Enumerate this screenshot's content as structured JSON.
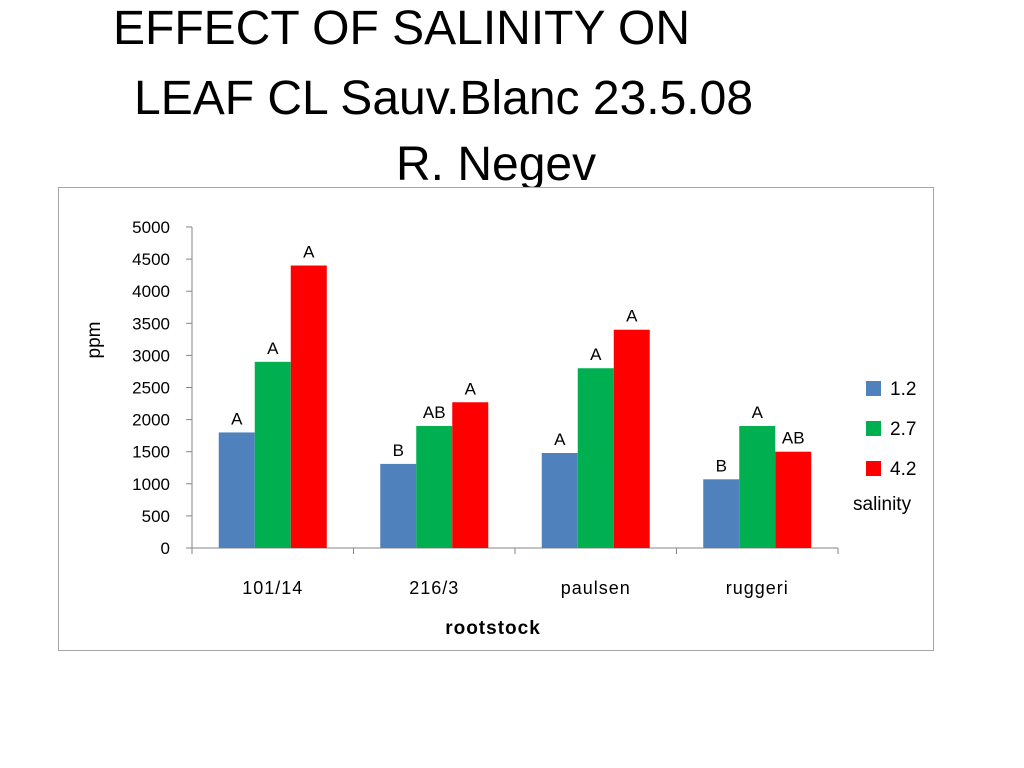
{
  "title": {
    "line1": "EFFECT OF SALINITY ON",
    "line2": "LEAF CL Sauv.Blanc  23.5.08",
    "line3": "R. Negev"
  },
  "chart_data": {
    "type": "bar",
    "categories": [
      "101/14",
      "216/3",
      "paulsen",
      "ruggeri"
    ],
    "series": [
      {
        "name": "1.2",
        "color": "#4f81bd",
        "values": [
          1800,
          1310,
          1480,
          1070
        ],
        "labels": [
          "A",
          "B",
          "A",
          "B"
        ]
      },
      {
        "name": "2.7",
        "color": "#00b050",
        "values": [
          2900,
          1900,
          2800,
          1900
        ],
        "labels": [
          "A",
          "AB",
          "A",
          "A"
        ]
      },
      {
        "name": "4.2",
        "color": "#ff0000",
        "values": [
          4400,
          2270,
          3400,
          1500
        ],
        "labels": [
          "A",
          "A",
          "A",
          "AB"
        ]
      }
    ],
    "ylim": [
      0,
      5000
    ],
    "yticks": [
      "0",
      "500",
      "1000",
      "1500",
      "2000",
      "2500",
      "3000",
      "3500",
      "4000",
      "4500",
      "5000"
    ],
    "ylabel": "ppm",
    "xlabel": "rootstock",
    "legend_title": "salinity",
    "legend_position": "right",
    "grid": false
  }
}
